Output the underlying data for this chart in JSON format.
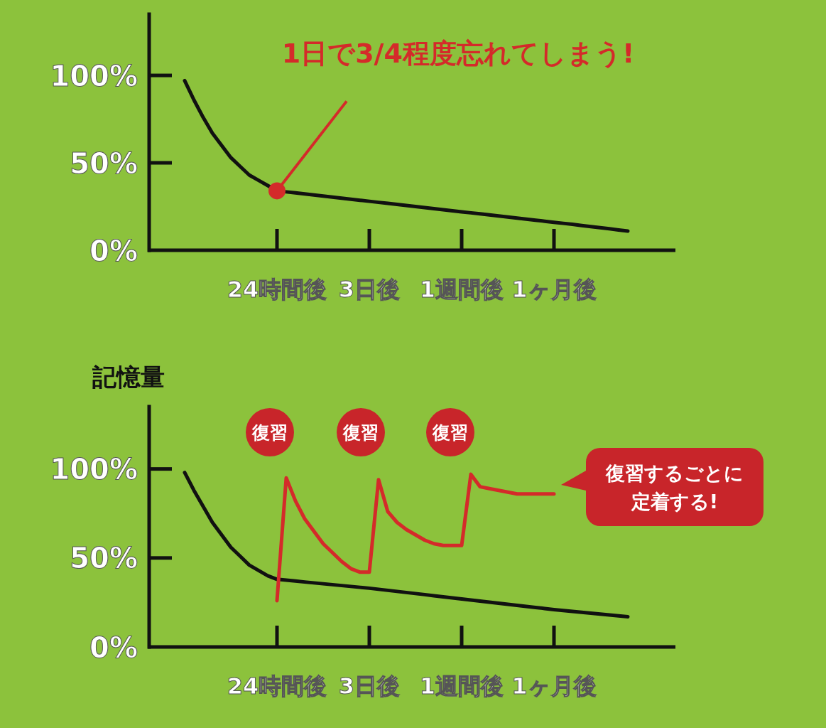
{
  "chart_data": [
    {
      "type": "line",
      "ylim": [
        0,
        135
      ],
      "categories": [
        null,
        null,
        null,
        null,
        null,
        null,
        null,
        null,
        null,
        null,
        "24時間後",
        null,
        null,
        null,
        null,
        null,
        null,
        null,
        null,
        null,
        "3日後",
        null,
        null,
        null,
        null,
        null,
        null,
        null,
        null,
        null,
        "1週間後",
        null,
        null,
        null,
        null,
        null,
        null,
        null,
        null,
        null,
        "1ヶ月後",
        null,
        null,
        null,
        null,
        null,
        null,
        null,
        null
      ],
      "yticks": [
        {
          "value": 0,
          "label": "0%"
        },
        {
          "value": 50,
          "label": "50%"
        },
        {
          "value": 100,
          "label": "100%"
        }
      ],
      "series": [
        {
          "color": "#111111",
          "values": [
            97,
            86,
            76,
            67,
            60,
            53,
            48,
            43,
            40,
            37,
            34,
            33.4,
            32.8,
            32.2,
            31.6,
            31,
            30.4,
            29.8,
            29.2,
            28.6,
            28,
            27.4,
            26.8,
            26.2,
            25.6,
            25,
            24.4,
            23.8,
            23.2,
            22.6,
            22,
            21.4,
            20.8,
            20.2,
            19.6,
            19,
            18.4,
            17.8,
            17.2,
            16.6,
            16,
            15.4,
            14.8,
            14.1,
            13.5,
            12.9,
            12.3,
            11.6,
            11
          ]
        }
      ],
      "annotations": [
        {
          "text": "1日で3/4程度忘れてしまう!",
          "x": "24時間後",
          "y": 34
        }
      ]
    },
    {
      "type": "line",
      "ylabel": "記憶量",
      "ylim": [
        0,
        135
      ],
      "categories": [
        null,
        null,
        null,
        null,
        null,
        null,
        null,
        null,
        null,
        null,
        "24時間後",
        null,
        null,
        null,
        null,
        null,
        null,
        null,
        null,
        null,
        "3日後",
        null,
        null,
        null,
        null,
        null,
        null,
        null,
        null,
        null,
        "1週間後",
        null,
        null,
        null,
        null,
        null,
        null,
        null,
        null,
        null,
        "1ヶ月後",
        null,
        null,
        null,
        null,
        null,
        null,
        null,
        null
      ],
      "yticks": [
        {
          "value": 0,
          "label": "0%"
        },
        {
          "value": 50,
          "label": "50%"
        },
        {
          "value": 100,
          "label": "100%"
        }
      ],
      "series": [
        {
          "color": "#111111",
          "values": [
            98,
            88,
            79,
            70,
            63,
            56,
            51,
            46,
            43,
            40,
            38,
            37.5,
            37,
            36.5,
            36,
            35.5,
            35,
            34.5,
            34,
            33.5,
            33,
            32.4,
            31.8,
            31.2,
            30.6,
            30,
            29.4,
            28.8,
            28.2,
            27.6,
            27,
            26.4,
            25.8,
            25.2,
            24.6,
            24,
            23.4,
            22.8,
            22.2,
            21.6,
            21,
            20.5,
            20,
            19.5,
            19,
            18.5,
            18,
            17.5,
            17
          ]
        },
        {
          "color": "#d42a2a",
          "values": [
            null,
            null,
            null,
            null,
            null,
            null,
            null,
            null,
            null,
            null,
            26,
            95,
            82,
            72,
            65,
            58,
            53,
            48,
            44,
            42,
            42,
            94,
            76,
            70,
            66,
            63,
            60,
            58,
            57,
            57,
            57,
            97,
            90,
            89,
            88,
            87,
            86,
            86,
            86,
            86,
            86,
            null,
            null,
            null,
            null,
            null,
            null,
            null,
            null
          ]
        }
      ],
      "annotations": [
        "復習",
        "復習",
        "復習",
        "復習するごとに定着する!"
      ]
    }
  ]
}
